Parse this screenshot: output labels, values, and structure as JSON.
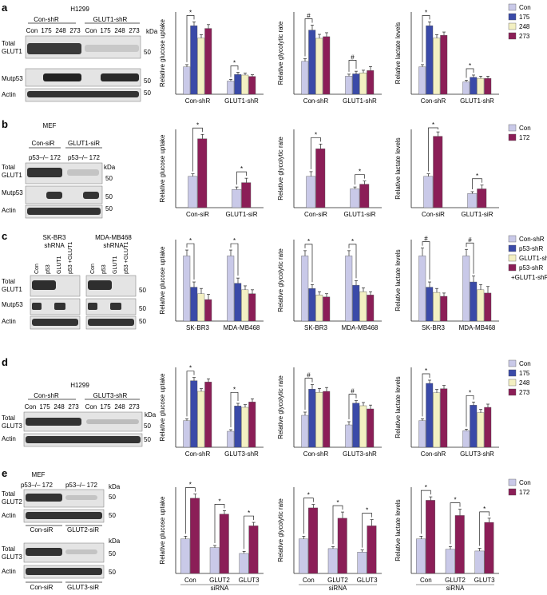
{
  "colors": {
    "con": "#c9c9e8",
    "mut175": "#3a4aa8",
    "mut248": "#f3f0c2",
    "mut273": "#8b1e57",
    "mut172": "#8b1e57",
    "sh_p53": "#3a4aa8",
    "sh_glut1": "#f3f0c2",
    "sh_both": "#8b1e57"
  },
  "panels": [
    {
      "letter": "a",
      "blot": {
        "title": "H1299",
        "groups": [
          "Con-shR",
          "GLUT1-shR"
        ],
        "lanes": [
          "Con",
          "175",
          "248",
          "273",
          "Con",
          "175",
          "248",
          "273"
        ],
        "rows": [
          {
            "label": "Total",
            "label2": "GLUT1",
            "marker": "50"
          },
          {
            "label": "Mutp53",
            "label2": "",
            "marker": "50"
          },
          {
            "label": "Actin",
            "label2": "",
            "marker": "50"
          }
        ],
        "kda": "kDa"
      },
      "legend": [
        "Con",
        "175",
        "248",
        "273"
      ],
      "legend_colors": [
        "#c9c9e8",
        "#3a4aa8",
        "#f3f0c2",
        "#8b1e57"
      ]
    },
    {
      "letter": "b",
      "blot": {
        "title": "MEF",
        "groups": [
          "Con-siR",
          "GLUT1-siR"
        ],
        "lanes": [
          "p53–/– 172",
          "p53–/– 172"
        ],
        "rows": [
          {
            "label": "Total",
            "label2": "GLUT1",
            "marker": "50"
          },
          {
            "label": "Mutp53",
            "label2": "",
            "marker": "50"
          },
          {
            "label": "Actin",
            "label2": "",
            "marker": "50"
          }
        ],
        "kda": "kDa"
      },
      "legend": [
        "Con",
        "172"
      ],
      "legend_colors": [
        "#c9c9e8",
        "#8b1e57"
      ]
    },
    {
      "letter": "c",
      "blot": {
        "title": "SK-BR3",
        "title_sub": "shRNA",
        "title2": "MDA-MB468",
        "title2_sub": "shRNA",
        "lanes": [
          "Con",
          "p53",
          "GLUT1",
          "p53 +GLUT1",
          "Con",
          "p53",
          "GLUT1",
          "p53 +GLUT1"
        ],
        "rows": [
          {
            "label": "Total",
            "label2": "GLUT1",
            "marker": "50"
          },
          {
            "label": "Mutp53",
            "label2": "",
            "marker": "50"
          },
          {
            "label": "Actin",
            "label2": "",
            "marker": "50"
          }
        ]
      },
      "legend": [
        "Con-shR",
        "p53-shR",
        "GLUT1-shR",
        "p53-shR",
        "+GLUT1-shR"
      ],
      "legend_colors": [
        "#c9c9e8",
        "#3a4aa8",
        "#f3f0c2",
        "#8b1e57",
        ""
      ]
    },
    {
      "letter": "d",
      "blot": {
        "title": "H1299",
        "groups": [
          "Con-shR",
          "GLUT3-shR"
        ],
        "lanes": [
          "Con",
          "175",
          "248",
          "273",
          "Con",
          "175",
          "248",
          "273"
        ],
        "rows": [
          {
            "label": "Total",
            "label2": "GLUT3",
            "marker": "50"
          },
          {
            "label": "Actin",
            "label2": "",
            "marker": "50"
          }
        ],
        "kda": "kDa"
      },
      "legend": [
        "Con",
        "175",
        "248",
        "273"
      ],
      "legend_colors": [
        "#c9c9e8",
        "#3a4aa8",
        "#f3f0c2",
        "#8b1e57"
      ]
    },
    {
      "letter": "e",
      "blot": {
        "title": "MEF",
        "lanes": [
          "p53–/– 172",
          "p53–/– 172"
        ],
        "rows": [
          {
            "label": "Total",
            "label2": "GLUT2",
            "marker": "50"
          },
          {
            "label": "Actin",
            "label2": "",
            "marker": "50"
          },
          {
            "label": "Total",
            "label2": "GLUT3",
            "marker": "50"
          },
          {
            "label": "Actin",
            "label2": "",
            "marker": "50"
          }
        ],
        "groups": [
          "Con-siR",
          "GLUT2-siR",
          "Con-siR",
          "GLUT3-siR"
        ],
        "kda": "kDa"
      },
      "legend": [
        "Con",
        "172"
      ],
      "legend_colors": [
        "#c9c9e8",
        "#8b1e57"
      ]
    }
  ],
  "chart_data": [
    {
      "panel": "a",
      "type": "bar",
      "ylabel": "Relative glucose uptake",
      "ylim": [
        0,
        300
      ],
      "categories": [
        "Con-shR",
        "GLUT1-shR"
      ],
      "series_names": [
        "Con",
        "175",
        "248",
        "273"
      ],
      "values": [
        [
          100,
          250,
          205,
          240
        ],
        [
          48,
          72,
          70,
          65
        ]
      ],
      "errors": [
        [
          8,
          14,
          12,
          14
        ],
        [
          6,
          8,
          7,
          6
        ]
      ],
      "sig": "*"
    },
    {
      "panel": "a",
      "type": "bar",
      "ylabel": "Relative glycolytic rate",
      "ylim": [
        0,
        250
      ],
      "categories": [
        "Con-shR",
        "GLUT1-shR"
      ],
      "series_names": [
        "Con",
        "175",
        "248",
        "273"
      ],
      "values": [
        [
          100,
          195,
          170,
          175
        ],
        [
          55,
          62,
          65,
          72
        ]
      ],
      "errors": [
        [
          8,
          15,
          12,
          12
        ],
        [
          6,
          8,
          8,
          12
        ]
      ],
      "sig": "#"
    },
    {
      "panel": "a",
      "type": "bar",
      "ylabel": "Relative lactate levels",
      "ylim": [
        0,
        300
      ],
      "categories": [
        "Con-shR",
        "GLUT1-shR"
      ],
      "series_names": [
        "Con",
        "175",
        "248",
        "273"
      ],
      "values": [
        [
          100,
          250,
          205,
          215
        ],
        [
          45,
          62,
          58,
          58
        ]
      ],
      "errors": [
        [
          8,
          14,
          12,
          12
        ],
        [
          6,
          8,
          8,
          8
        ]
      ],
      "sig": "*"
    },
    {
      "panel": "b",
      "type": "bar",
      "ylabel": "Relative glucose uptake",
      "ylim": [
        0,
        250
      ],
      "categories": [
        "Con-siR",
        "GLUT1-siR"
      ],
      "series_names": [
        "Con",
        "172"
      ],
      "values": [
        [
          100,
          220
        ],
        [
          58,
          80
        ]
      ],
      "errors": [
        [
          8,
          14
        ],
        [
          8,
          14
        ]
      ],
      "sig": "*"
    },
    {
      "panel": "b",
      "type": "bar",
      "ylabel": "Relative glycolytic rate",
      "ylim": [
        0,
        250
      ],
      "categories": [
        "Con-siR",
        "GLUT1-siR"
      ],
      "series_names": [
        "Con",
        "172"
      ],
      "values": [
        [
          100,
          188
        ],
        [
          60,
          75
        ]
      ],
      "errors": [
        [
          15,
          15
        ],
        [
          6,
          10
        ]
      ],
      "sig": "*"
    },
    {
      "panel": "b",
      "type": "bar",
      "ylabel": "Relative lactate levels",
      "ylim": [
        0,
        250
      ],
      "categories": [
        "Con-siR",
        "GLUT1-siR"
      ],
      "series_names": [
        "Con",
        "172"
      ],
      "values": [
        [
          100,
          228
        ],
        [
          45,
          60
        ]
      ],
      "errors": [
        [
          8,
          14
        ],
        [
          6,
          12
        ]
      ],
      "sig": "*"
    },
    {
      "panel": "c",
      "type": "bar",
      "ylabel": "Relative glucose uptake",
      "ylim": [
        0,
        125
      ],
      "categories": [
        "SK-BR3",
        "MDA-MB468"
      ],
      "series_names": [
        "Con-shR",
        "p53-shR",
        "GLUT1-shR",
        "p53-shR +GLUT1-shR"
      ],
      "values": [
        [
          100,
          52,
          42,
          33
        ],
        [
          100,
          58,
          48,
          42
        ]
      ],
      "errors": [
        [
          9,
          8,
          8,
          8
        ],
        [
          9,
          8,
          6,
          6
        ]
      ],
      "sig": "*"
    },
    {
      "panel": "c",
      "type": "bar",
      "ylabel": "Relative glycolytic rate",
      "ylim": [
        0,
        125
      ],
      "categories": [
        "SK-BR3",
        "MDA-MB468"
      ],
      "series_names": [
        "Con-shR",
        "p53-shR",
        "GLUT1-shR",
        "p53-shR +GLUT1-shR"
      ],
      "values": [
        [
          100,
          50,
          40,
          37
        ],
        [
          100,
          55,
          45,
          40
        ]
      ],
      "errors": [
        [
          8,
          6,
          5,
          5
        ],
        [
          8,
          7,
          6,
          5
        ]
      ],
      "sig": "*"
    },
    {
      "panel": "c",
      "type": "bar",
      "ylabel": "Relative lactate levels",
      "ylim": [
        0,
        125
      ],
      "categories": [
        "SK-BR3",
        "MDA-MB468"
      ],
      "series_names": [
        "Con-shR",
        "p53-shR",
        "GLUT1-shR",
        "p53-shR +GLUT1-shR"
      ],
      "values": [
        [
          100,
          52,
          44,
          38
        ],
        [
          100,
          60,
          48,
          43
        ]
      ],
      "errors": [
        [
          12,
          8,
          6,
          5
        ],
        [
          10,
          9,
          8,
          10
        ]
      ],
      "sig": "#"
    },
    {
      "panel": "d",
      "type": "bar",
      "ylabel": "Relative glucose uptake",
      "ylim": [
        0,
        300
      ],
      "categories": [
        "Con-shR",
        "GLUT3-shR"
      ],
      "series_names": [
        "Con",
        "175",
        "248",
        "273"
      ],
      "values": [
        [
          100,
          250,
          210,
          245
        ],
        [
          60,
          155,
          150,
          170
        ]
      ],
      "errors": [
        [
          7,
          12,
          10,
          12
        ],
        [
          6,
          10,
          10,
          12
        ]
      ],
      "sig": "*"
    },
    {
      "panel": "d",
      "type": "bar",
      "ylabel": "Relative glycolytic rate",
      "ylim": [
        0,
        250
      ],
      "categories": [
        "Con-shR",
        "GLUT3-shR"
      ],
      "series_names": [
        "Con",
        "175",
        "248",
        "273"
      ],
      "values": [
        [
          100,
          182,
          172,
          175
        ],
        [
          70,
          138,
          130,
          120
        ]
      ],
      "errors": [
        [
          10,
          14,
          12,
          12
        ],
        [
          10,
          8,
          10,
          12
        ]
      ],
      "sig": "#"
    },
    {
      "panel": "d",
      "type": "bar",
      "ylabel": "Relative lactate levels",
      "ylim": [
        0,
        300
      ],
      "categories": [
        "Con-shR",
        "GLUT3-shR"
      ],
      "series_names": [
        "Con",
        "175",
        "248",
        "273"
      ],
      "values": [
        [
          100,
          240,
          205,
          220
        ],
        [
          62,
          158,
          130,
          150
        ]
      ],
      "errors": [
        [
          7,
          12,
          12,
          12
        ],
        [
          6,
          12,
          12,
          12
        ]
      ],
      "sig": "*"
    },
    {
      "panel": "e",
      "type": "bar",
      "ylabel": "Relative glucose uptake",
      "ylim": [
        0,
        250
      ],
      "categories": [
        "Con",
        "GLUT2",
        "GLUT3"
      ],
      "group_label": "siRNA",
      "series_names": [
        "Con",
        "172"
      ],
      "values": [
        [
          100,
          218
        ],
        [
          75,
          172
        ],
        [
          58,
          138
        ]
      ],
      "errors": [
        [
          8,
          12
        ],
        [
          6,
          10
        ],
        [
          6,
          10
        ]
      ],
      "sig": "*"
    },
    {
      "panel": "e",
      "type": "bar",
      "ylabel": "Relative glycolytic rate",
      "ylim": [
        0,
        250
      ],
      "categories": [
        "Con",
        "GLUT2",
        "GLUT3"
      ],
      "group_label": "siRNA",
      "series_names": [
        "Con",
        "172"
      ],
      "values": [
        [
          100,
          190
        ],
        [
          72,
          160
        ],
        [
          62,
          138
        ]
      ],
      "errors": [
        [
          8,
          10
        ],
        [
          6,
          18
        ],
        [
          6,
          18
        ]
      ],
      "sig": "*"
    },
    {
      "panel": "e",
      "type": "bar",
      "ylabel": "Relative lactate levels",
      "ylim": [
        0,
        250
      ],
      "categories": [
        "Con",
        "GLUT2",
        "GLUT3"
      ],
      "group_label": "siRNA",
      "series_names": [
        "Con",
        "172"
      ],
      "values": [
        [
          100,
          212
        ],
        [
          70,
          168
        ],
        [
          65,
          148
        ]
      ],
      "errors": [
        [
          8,
          10
        ],
        [
          8,
          18
        ],
        [
          8,
          12
        ]
      ],
      "sig": "*"
    }
  ]
}
